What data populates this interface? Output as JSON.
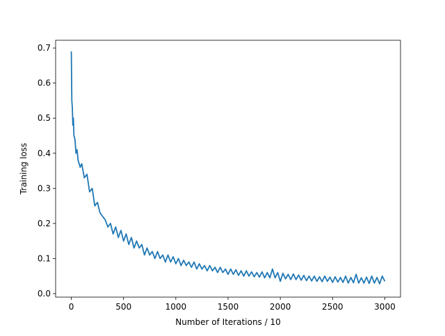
{
  "chart_data": {
    "type": "line",
    "x_label": "Number of Iterations / 10",
    "y_label": "Training loss",
    "xlim": [
      -150,
      3150
    ],
    "ylim": [
      -0.01,
      0.722
    ],
    "xticks": [
      0,
      500,
      1000,
      1500,
      2000,
      2500,
      3000
    ],
    "yticks": [
      {
        "value": 0,
        "label": "0.0"
      },
      0.1,
      0.2,
      0.3,
      0.4,
      0.5,
      0.6,
      0.7
    ],
    "x": [
      0,
      5,
      10,
      15,
      20,
      25,
      35,
      45,
      55,
      65,
      75,
      85,
      100,
      125,
      150,
      175,
      200,
      225,
      250,
      275,
      300,
      325,
      350,
      375,
      400,
      425,
      450,
      475,
      500,
      525,
      550,
      575,
      600,
      625,
      650,
      675,
      700,
      725,
      750,
      775,
      800,
      825,
      850,
      875,
      900,
      925,
      950,
      975,
      1000,
      1025,
      1050,
      1075,
      1100,
      1125,
      1150,
      1175,
      1200,
      1225,
      1250,
      1275,
      1300,
      1325,
      1350,
      1375,
      1400,
      1425,
      1450,
      1475,
      1500,
      1525,
      1550,
      1575,
      1600,
      1625,
      1650,
      1675,
      1700,
      1725,
      1750,
      1775,
      1800,
      1825,
      1850,
      1875,
      1900,
      1925,
      1950,
      1975,
      2000,
      2025,
      2050,
      2075,
      2100,
      2125,
      2150,
      2175,
      2200,
      2225,
      2250,
      2275,
      2300,
      2325,
      2350,
      2375,
      2400,
      2425,
      2450,
      2475,
      2500,
      2525,
      2550,
      2575,
      2600,
      2625,
      2650,
      2675,
      2700,
      2725,
      2750,
      2775,
      2800,
      2825,
      2850,
      2875,
      2900,
      2925,
      2950,
      2975,
      3000
    ],
    "series": [
      {
        "color": "#1f77b4",
        "values": [
          0.69,
          0.55,
          0.53,
          0.48,
          0.5,
          0.45,
          0.44,
          0.4,
          0.41,
          0.38,
          0.37,
          0.36,
          0.37,
          0.33,
          0.34,
          0.29,
          0.3,
          0.25,
          0.26,
          0.23,
          0.22,
          0.21,
          0.19,
          0.2,
          0.17,
          0.19,
          0.16,
          0.18,
          0.15,
          0.17,
          0.14,
          0.16,
          0.13,
          0.15,
          0.13,
          0.14,
          0.11,
          0.13,
          0.11,
          0.12,
          0.1,
          0.12,
          0.1,
          0.11,
          0.09,
          0.11,
          0.09,
          0.105,
          0.085,
          0.1,
          0.08,
          0.095,
          0.08,
          0.09,
          0.075,
          0.09,
          0.07,
          0.085,
          0.07,
          0.08,
          0.065,
          0.08,
          0.065,
          0.075,
          0.06,
          0.075,
          0.06,
          0.07,
          0.055,
          0.07,
          0.055,
          0.068,
          0.052,
          0.065,
          0.05,
          0.065,
          0.05,
          0.062,
          0.048,
          0.06,
          0.047,
          0.062,
          0.045,
          0.06,
          0.045,
          0.07,
          0.045,
          0.06,
          0.035,
          0.058,
          0.042,
          0.055,
          0.04,
          0.056,
          0.04,
          0.053,
          0.038,
          0.052,
          0.037,
          0.05,
          0.036,
          0.05,
          0.035,
          0.048,
          0.034,
          0.05,
          0.035,
          0.047,
          0.032,
          0.048,
          0.033,
          0.046,
          0.032,
          0.05,
          0.03,
          0.046,
          0.031,
          0.055,
          0.03,
          0.045,
          0.03,
          0.047,
          0.029,
          0.05,
          0.03,
          0.046,
          0.028,
          0.05,
          0.035
        ]
      }
    ]
  }
}
